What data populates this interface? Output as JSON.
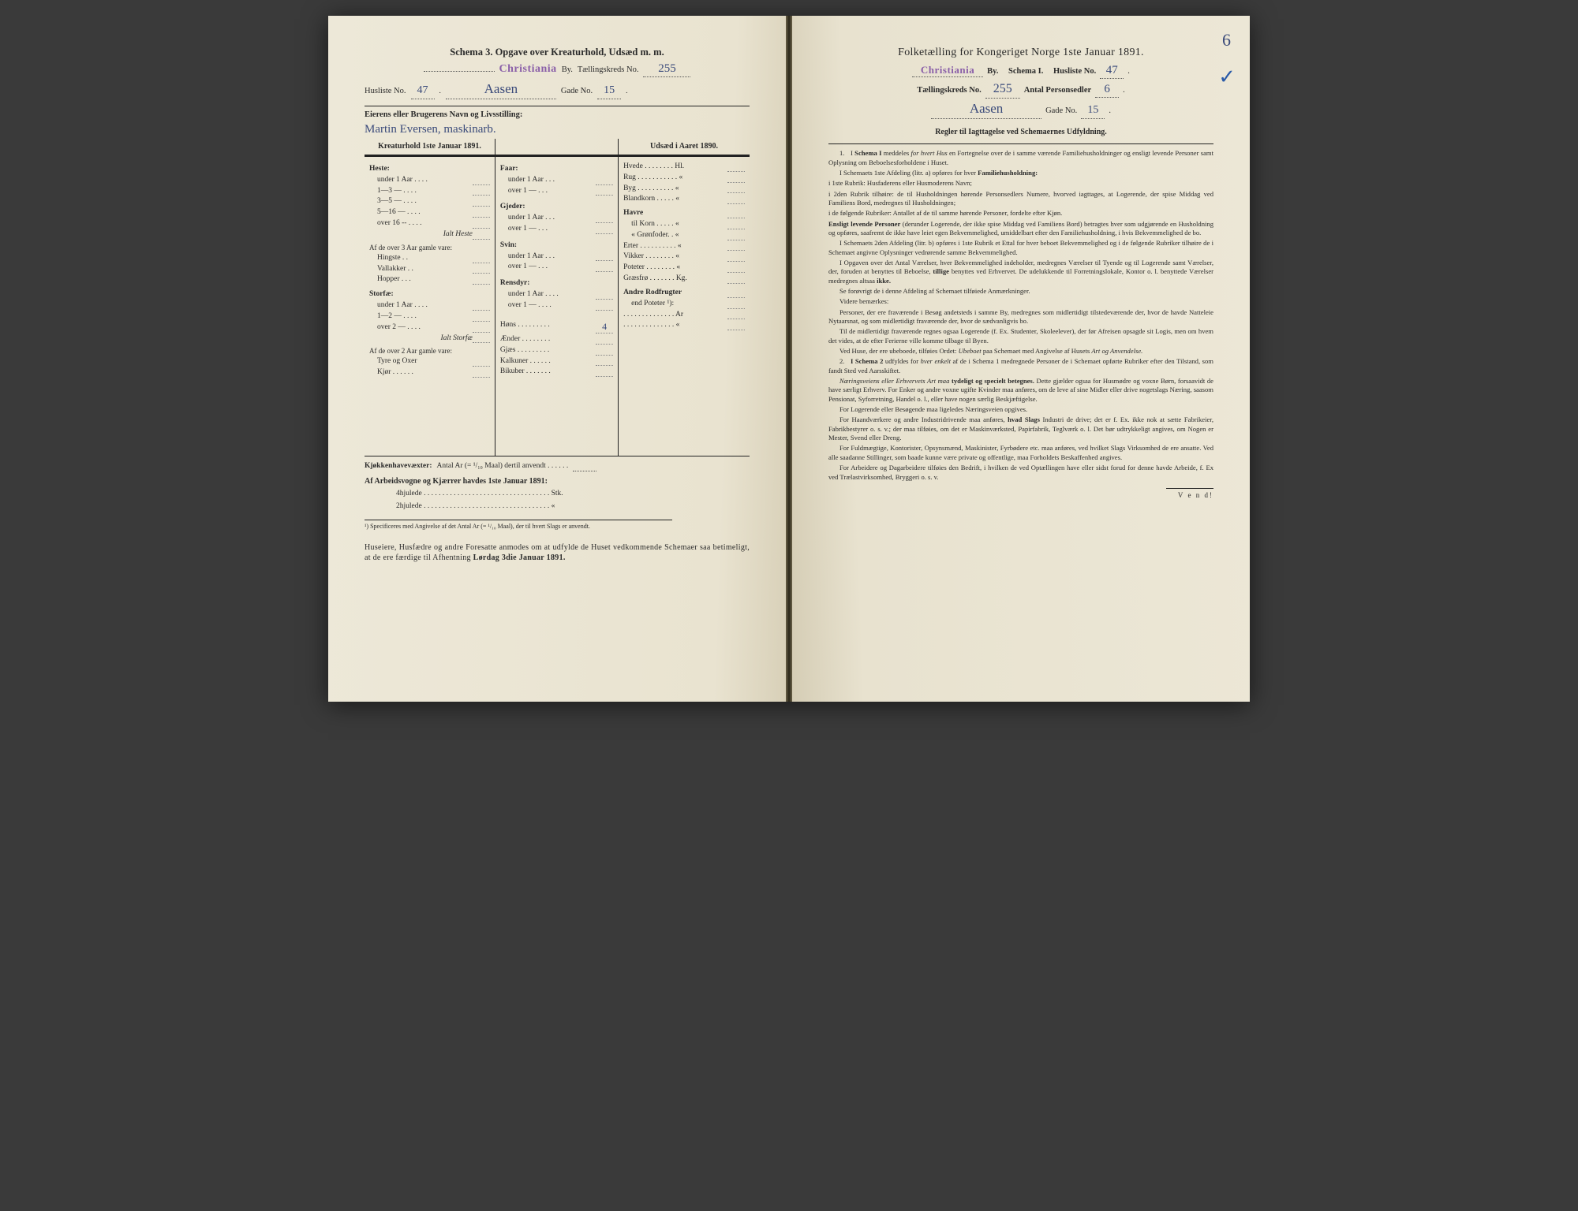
{
  "left": {
    "title": "Schema 3.  Opgave over Kreaturhold, Udsæd m. m.",
    "city_stamp": "Christiania",
    "by_label": "By.",
    "taelling_label": "Tællingskreds No.",
    "taelling_no": "255",
    "husliste_label": "Husliste No.",
    "husliste_no": "47",
    "street_hw": "Aasen",
    "gade_label": "Gade No.",
    "gade_no": "15",
    "owner_label": "Eierens eller Brugerens Navn og Livsstilling:",
    "owner_name": "Martin Eversen, maskinarb.",
    "col1_head": "Kreaturhold 1ste Januar 1891.",
    "col3_head": "Udsæd i Aaret 1890.",
    "heste": {
      "label": "Heste:",
      "rows": [
        "under 1 Aar . . . .",
        "1—3   —   . . . .",
        "3—5   —   . . . .",
        "5—16  —   . . . .",
        "over 16 --  . . . ."
      ],
      "sum": "Ialt Heste"
    },
    "heste_sub_label": "Af de over 3 Aar gamle vare:",
    "heste_sub": [
      "Hingste . .",
      "Vallakker . .",
      "Hopper . . ."
    ],
    "storfae": {
      "label": "Storfæ:",
      "rows": [
        "under 1 Aar . . . .",
        "1—2   —   . . . .",
        "over 2   —   . . . ."
      ],
      "sum": "Ialt Storfæ"
    },
    "storfae_sub_label": "Af de over 2 Aar gamle vare:",
    "storfae_sub": [
      "Tyre og Oxer",
      "Kjør . . . . . ."
    ],
    "faar": {
      "label": "Faar:",
      "rows": [
        "under 1 Aar . . .",
        "over 1   —   . . ."
      ]
    },
    "gjeder": {
      "label": "Gjeder:",
      "rows": [
        "under 1 Aar . . .",
        "over 1   —   . . ."
      ]
    },
    "svin": {
      "label": "Svin:",
      "rows": [
        "under 1 Aar . . .",
        "over 1   —  . . ."
      ]
    },
    "rensdyr": {
      "label": "Rensdyr:",
      "rows": [
        "under 1 Aar . . . .",
        "over 1   —   . . . ."
      ]
    },
    "poultry": [
      "Høns . . . . . . . . .",
      "Ænder . . . . . . . .",
      "Gjæs . . . . . . . . .",
      "Kalkuner . . . . . .",
      "Bikuber . . . . . . ."
    ],
    "hons_val": "4",
    "udsad": [
      {
        "l": "Hvede . . . . . . . . Hl."
      },
      {
        "l": "Rug . . . . . . . . . . .  «"
      },
      {
        "l": "Byg . . . . . . . . . .  «"
      },
      {
        "l": "Blandkorn . . . . .  «"
      },
      {
        "l": "Havre",
        "bold": true
      },
      {
        "l": "til Korn . . . . .  «",
        "indent": true
      },
      {
        "l": "«  Grønfoder. .  «",
        "indent": true
      },
      {
        "l": "Erter . . . . . . . . . .  «"
      },
      {
        "l": "Vikker . . . . . . . .  «"
      },
      {
        "l": "Poteter . . . . . . . .  «"
      },
      {
        "l": "Græsfrø . . . . . . . Kg."
      },
      {
        "l": "Andre Rodfrugter",
        "bold": true
      },
      {
        "l": "end Poteter ¹):",
        "indent": true
      },
      {
        "l": ". . . . . . . . . . . . . . Ar"
      },
      {
        "l": ". . . . . . . . . . . . . .  «"
      }
    ],
    "kjok_label": "Kjøkkenhavevæxter:",
    "kjok_text": "Antal Ar (= ¹/₁₀ Maal) dertil anvendt . . . . . .",
    "arb_head": "Af Arbeidsvogne og Kjærrer havdes 1ste Januar 1891:",
    "arb_rows": [
      "4hjulede . . . . . . . . . . . . . . . . . . . . . . . . . . . . . . . . . . Stk.",
      "2hjulede . . . . . . . . . . . . . . . . . . . . . . . . . . . . . . . . . .   «"
    ],
    "foot1": "¹) Specificeres med Angivelse af det Antal Ar (= ¹/₁₀ Maal), der til hvert Slags er anvendt.",
    "foot2": "Huseiere, Husfædre og andre Foresatte anmodes om at udfylde de Huset vedkommende Schemaer saa betimeligt, at de ere færdige til Afhentning Lørdag 3die Januar 1891.",
    "foot2_bold": "Lørdag 3die Januar 1891."
  },
  "right": {
    "corner_hw": "6",
    "title": "Folketælling for Kongeriget Norge 1ste Januar 1891.",
    "city_stamp": "Christiania",
    "by": "By.",
    "schema": "Schema I.",
    "husliste_lbl": "Husliste No.",
    "husliste_no": "47",
    "taelling_lbl": "Tællingskreds No.",
    "taelling_no": "255",
    "antal_lbl": "Antal Personsedler",
    "antal_no": "6",
    "street_hw": "Aasen",
    "gade_lbl": "Gade No.",
    "gade_no": "15",
    "rules_head": "Regler til Iagttagelse ved Schemaernes Udfyldning.",
    "rules": [
      {
        "n": "1.",
        "t": "I <b>Schema I</b> meddeles <i>for hvert Hus</i> en Fortegnelse over de i samme værende Familiehusholdninger og ensligt levende Personer samt Oplysning om Beboelsesforholdene i Huset."
      },
      {
        "t": "I Schemaets 1ste Afdeling (litr. a) opføres for hver <b>Familiehusholdning:</b>"
      },
      {
        "t": "i 1ste Rubrik: Husfaderens eller Husmoderens Navn;",
        "ni": true
      },
      {
        "t": "i 2den Rubrik tilhøire: de til Husholdningen hørende Personsedlers Numere, hvorved iagttages, at Logerende, der spise Middag ved Familiens Bord, medregnes til Husholdningen;",
        "ni": true
      },
      {
        "t": "i de følgende Rubriker: Antallet af de til samme hørende Personer, fordelte efter Kjøn.",
        "ni": true
      },
      {
        "t": "<b>Ensligt levende Personer</b> (derunder Logerende, der ikke spise Middag ved Familiens Bord) betragtes hver som udgjørende en Husholdning og opføres, saafremt de ikke have leiet egen Bekvemmelighed, umiddelbart efter den Familiehusholdning, i hvis Bekvemmelighed de bo.",
        "ni": true
      },
      {
        "t": "I Schemaets 2den Afdeling (litr. b) opføres i 1ste Rubrik et Ettal for hver beboet Bekvemmelighed og i de følgende Rubriker tilhøire de i Schemaet angivne Oplysninger vedrørende samme Bekvemmelighed."
      },
      {
        "t": "I Opgaven over det Antal Værelser, hver Bekvemmelighed indeholder, medregnes Værelser til Tyende og til Logerende samt Værelser, der, foruden at benyttes til Beboelse, <b>tillige</b> benyttes ved Erhvervet. De udelukkende til Forretningslokale, Kontor o. l. benyttede Værelser medregnes altsaa <b>ikke.</b>"
      },
      {
        "t": "Se forøvrigt de i denne Afdeling af Schemaet tilføiede Anmærkninger."
      },
      {
        "t": "Videre bemærkes:"
      },
      {
        "t": "Personer, der ere fraværende i Besøg andetsteds i samme By, medregnes som midlertidigt tilstedeværende der, hvor de havde Natteleie Nytaarsnat, og som midlertidigt fraværende der, hvor de sædvanligvis bo."
      },
      {
        "t": "Til de midlertidigt fraværende regnes ogsaa Logerende (f. Ex. Studenter, Skoleelever), der før Afreisen opsagde sit Logis, men om hvem det vides, at de efter Ferierne ville komme tilbage til Byen."
      },
      {
        "t": "Ved Huse, der ere ubeboede, tilføies Ordet: <i>Ubeboet</i> paa Schemaet med Angivelse af Husets <i>Art og Anvendelse.</i>"
      },
      {
        "n": "2.",
        "t": "<b>I Schema 2</b> udfyldes for <i>hver enkelt</i> af de i Schema 1 medregnede Personer de i Schemaet opførte Rubriker efter den Tilstand, som fandt Sted ved Aarsskiftet."
      },
      {
        "t": "<i>Næringsveiens eller Erhvervets Art maa</i> <b>tydeligt og specielt betegnes.</b> Dette gjælder ogsaa for Husmødre og voxne Børn, forsaavidt de have særligt Erhverv. For Enker og andre voxne ugifte Kvinder maa anføres, om de leve af sine Midler eller drive nogetslags Næring, saasom Pensionat, Syforretning, Handel o. l., eller have nogen særlig Beskjæftigelse."
      },
      {
        "t": "For Logerende eller Besøgende maa ligeledes Næringsveien opgives."
      },
      {
        "t": "For Haandværkere og andre Industridrivende maa anføres, <b>hvad Slags</b> Industri de drive; det er f. Ex. ikke nok at sætte Fabrikeier, Fabrikbestyrer o. s. v.; der maa tilføies, om det er Maskinværksted, Papirfabrik, Teglværk o. l. Det bør udtrykkeligt angives, om Nogen er Mester, Svend eller Dreng."
      },
      {
        "t": "For Fuldmægtige, Kontorister, Opsynsmænd, Maskinister, Fyrbødere etc. maa anføres, ved hvilket Slags Virksomhed de ere ansatte. Ved alle saadanne Stillinger, som baade kunne være private og offentlige, maa Forholdets Beskaffenhed angives."
      },
      {
        "t": "For Arbeidere og Dagarbeidere tilføies den Bedrift, i hvilken de ved Optællingen have eller sidst forud for denne havde Arbeide, f. Ex ved Trælastvirksomhed, Bryggeri o. s. v."
      }
    ],
    "vend": "V e n d!"
  },
  "colors": {
    "paper": "#e9e3d0",
    "ink": "#2a2a2a",
    "hw": "#3a4a7a",
    "stamp": "#8a5fa8",
    "bg": "#3a3a3a"
  }
}
